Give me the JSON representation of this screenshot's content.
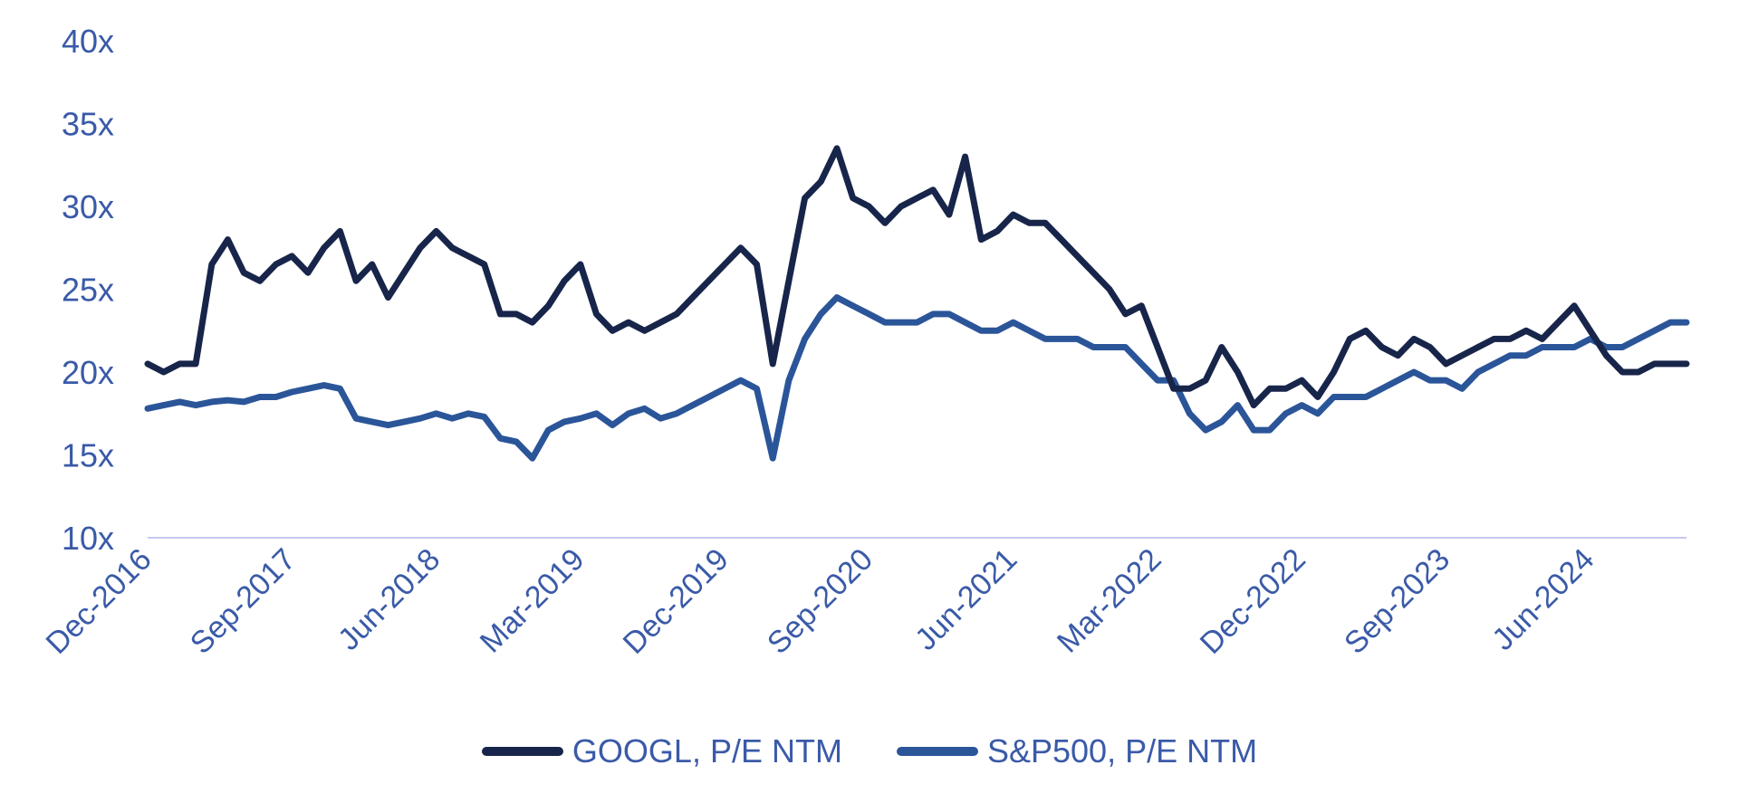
{
  "colors": {
    "googl": "#18254a",
    "sp500": "#2b5599",
    "axis_text": "#3a5aa8",
    "baseline": "#c8c8f0"
  },
  "legend": [
    {
      "name": "GOOGL, P/E NTM",
      "color_key": "googl"
    },
    {
      "name": "S&P500, P/E NTM",
      "color_key": "sp500"
    }
  ],
  "chart_data": {
    "type": "line",
    "title": "",
    "xlabel": "",
    "ylabel": "",
    "ylim": [
      10,
      40
    ],
    "xlim": [
      "2016-12",
      "2024-12"
    ],
    "yticks": [
      10,
      15,
      20,
      25,
      30,
      35,
      40
    ],
    "ytick_labels": [
      "10x",
      "15x",
      "20x",
      "25x",
      "30x",
      "35x",
      "40x"
    ],
    "xticks": [
      "2016-12",
      "2017-09",
      "2018-06",
      "2019-03",
      "2019-12",
      "2020-09",
      "2021-06",
      "2022-03",
      "2022-12",
      "2023-09",
      "2024-06"
    ],
    "xtick_labels": [
      "Dec-2016",
      "Sep-2017",
      "Jun-2018",
      "Mar-2019",
      "Dec-2019",
      "Sep-2020",
      "Jun-2021",
      "Mar-2022",
      "Dec-2022",
      "Sep-2023",
      "Jun-2024"
    ],
    "grid": false,
    "legend_position": "bottom",
    "series": [
      {
        "name": "GOOGL, P/E NTM",
        "color_key": "googl",
        "x": [
          "2016-12",
          "2017-01",
          "2017-02",
          "2017-03",
          "2017-04",
          "2017-05",
          "2017-06",
          "2017-07",
          "2017-08",
          "2017-09",
          "2017-10",
          "2017-11",
          "2017-12",
          "2018-01",
          "2018-02",
          "2018-03",
          "2018-04",
          "2018-05",
          "2018-06",
          "2018-07",
          "2018-08",
          "2018-09",
          "2018-10",
          "2018-11",
          "2018-12",
          "2019-01",
          "2019-02",
          "2019-03",
          "2019-04",
          "2019-05",
          "2019-06",
          "2019-07",
          "2019-08",
          "2019-09",
          "2019-10",
          "2019-11",
          "2019-12",
          "2020-01",
          "2020-02",
          "2020-03",
          "2020-04",
          "2020-05",
          "2020-06",
          "2020-07",
          "2020-08",
          "2020-09",
          "2020-10",
          "2020-11",
          "2020-12",
          "2021-01",
          "2021-02",
          "2021-03",
          "2021-04",
          "2021-05",
          "2021-06",
          "2021-07",
          "2021-08",
          "2021-09",
          "2021-10",
          "2021-11",
          "2021-12",
          "2022-01",
          "2022-02",
          "2022-03",
          "2022-04",
          "2022-05",
          "2022-06",
          "2022-07",
          "2022-08",
          "2022-09",
          "2022-10",
          "2022-11",
          "2022-12",
          "2023-01",
          "2023-02",
          "2023-03",
          "2023-04",
          "2023-05",
          "2023-06",
          "2023-07",
          "2023-08",
          "2023-09",
          "2023-10",
          "2023-11",
          "2023-12",
          "2024-01",
          "2024-02",
          "2024-03",
          "2024-04",
          "2024-05",
          "2024-06",
          "2024-07",
          "2024-08",
          "2024-09",
          "2024-10",
          "2024-11",
          "2024-12"
        ],
        "y": [
          20.5,
          20.0,
          20.5,
          20.5,
          26.5,
          28.0,
          26.0,
          25.5,
          26.5,
          27.0,
          26.0,
          27.5,
          28.5,
          25.5,
          26.5,
          24.5,
          26.0,
          27.5,
          28.5,
          27.5,
          27.0,
          26.5,
          23.5,
          23.5,
          23.0,
          24.0,
          25.5,
          26.5,
          23.5,
          22.5,
          23.0,
          22.5,
          23.0,
          23.5,
          24.5,
          25.5,
          26.5,
          27.5,
          26.5,
          20.5,
          25.5,
          30.5,
          31.5,
          33.5,
          30.5,
          30.0,
          29.0,
          30.0,
          30.5,
          31.0,
          29.5,
          33.0,
          28.0,
          28.5,
          29.5,
          29.0,
          29.0,
          28.0,
          27.0,
          26.0,
          25.0,
          23.5,
          24.0,
          21.5,
          19.0,
          19.0,
          19.5,
          21.5,
          20.0,
          18.0,
          19.0,
          19.0,
          19.5,
          18.5,
          20.0,
          22.0,
          22.5,
          21.5,
          21.0,
          22.0,
          21.5,
          20.5,
          21.0,
          21.5,
          22.0,
          22.0,
          22.5,
          22.0,
          23.0,
          24.0,
          22.5,
          21.0,
          20.0,
          20.0,
          20.5,
          20.5,
          20.5
        ]
      },
      {
        "name": "S&P500, P/E NTM",
        "color_key": "sp500",
        "x": [
          "2016-12",
          "2017-01",
          "2017-02",
          "2017-03",
          "2017-04",
          "2017-05",
          "2017-06",
          "2017-07",
          "2017-08",
          "2017-09",
          "2017-10",
          "2017-11",
          "2017-12",
          "2018-01",
          "2018-02",
          "2018-03",
          "2018-04",
          "2018-05",
          "2018-06",
          "2018-07",
          "2018-08",
          "2018-09",
          "2018-10",
          "2018-11",
          "2018-12",
          "2019-01",
          "2019-02",
          "2019-03",
          "2019-04",
          "2019-05",
          "2019-06",
          "2019-07",
          "2019-08",
          "2019-09",
          "2019-10",
          "2019-11",
          "2019-12",
          "2020-01",
          "2020-02",
          "2020-03",
          "2020-04",
          "2020-05",
          "2020-06",
          "2020-07",
          "2020-08",
          "2020-09",
          "2020-10",
          "2020-11",
          "2020-12",
          "2021-01",
          "2021-02",
          "2021-03",
          "2021-04",
          "2021-05",
          "2021-06",
          "2021-07",
          "2021-08",
          "2021-09",
          "2021-10",
          "2021-11",
          "2021-12",
          "2022-01",
          "2022-02",
          "2022-03",
          "2022-04",
          "2022-05",
          "2022-06",
          "2022-07",
          "2022-08",
          "2022-09",
          "2022-10",
          "2022-11",
          "2022-12",
          "2023-01",
          "2023-02",
          "2023-03",
          "2023-04",
          "2023-05",
          "2023-06",
          "2023-07",
          "2023-08",
          "2023-09",
          "2023-10",
          "2023-11",
          "2023-12",
          "2024-01",
          "2024-02",
          "2024-03",
          "2024-04",
          "2024-05",
          "2024-06",
          "2024-07",
          "2024-08",
          "2024-09",
          "2024-10",
          "2024-11",
          "2024-12"
        ],
        "y": [
          17.8,
          18.0,
          18.2,
          18.0,
          18.2,
          18.3,
          18.2,
          18.5,
          18.5,
          18.8,
          19.0,
          19.2,
          19.0,
          17.2,
          17.0,
          16.8,
          17.0,
          17.2,
          17.5,
          17.2,
          17.5,
          17.3,
          16.0,
          15.8,
          14.8,
          16.5,
          17.0,
          17.2,
          17.5,
          16.8,
          17.5,
          17.8,
          17.2,
          17.5,
          18.0,
          18.5,
          19.0,
          19.5,
          19.0,
          14.8,
          19.5,
          22.0,
          23.5,
          24.5,
          24.0,
          23.5,
          23.0,
          23.0,
          23.0,
          23.5,
          23.5,
          23.0,
          22.5,
          22.5,
          23.0,
          22.5,
          22.0,
          22.0,
          22.0,
          21.5,
          21.5,
          21.5,
          20.5,
          19.5,
          19.5,
          17.5,
          16.5,
          17.0,
          18.0,
          16.5,
          16.5,
          17.5,
          18.0,
          17.5,
          18.5,
          18.5,
          18.5,
          19.0,
          19.5,
          20.0,
          19.5,
          19.5,
          19.0,
          20.0,
          20.5,
          21.0,
          21.0,
          21.5,
          21.5,
          21.5,
          22.0,
          21.5,
          21.5,
          22.0,
          22.5,
          23.0,
          23.0
        ]
      }
    ]
  }
}
